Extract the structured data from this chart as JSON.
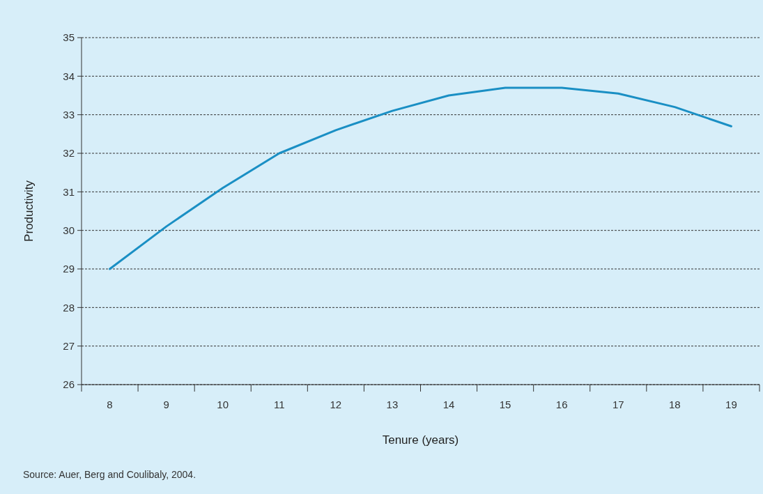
{
  "chart_data": {
    "type": "line",
    "xlabel": "Tenure (years)",
    "ylabel": "Productivity",
    "categories": [
      "8",
      "9",
      "10",
      "11",
      "12",
      "13",
      "14",
      "15",
      "16",
      "17",
      "18",
      "19"
    ],
    "series": [
      {
        "color": "#1a8fc4",
        "values": [
          29.0,
          30.1,
          31.1,
          32.0,
          32.6,
          33.1,
          33.5,
          33.7,
          33.7,
          33.55,
          33.2,
          32.7
        ]
      }
    ],
    "ylim": [
      26,
      35
    ],
    "yticks": [
      26,
      27,
      28,
      29,
      30,
      31,
      32,
      33,
      34,
      35
    ],
    "grid": "y",
    "marker": "none",
    "line_style": "solid",
    "annotations": [
      "Source: Auer, Berg and Coulibaly, 2004."
    ]
  }
}
